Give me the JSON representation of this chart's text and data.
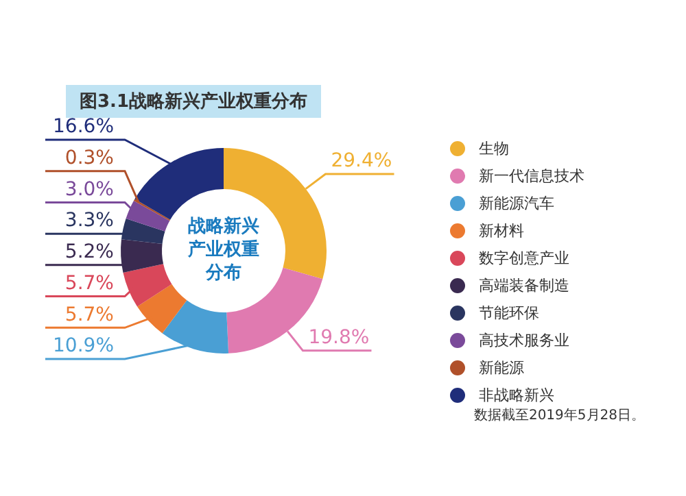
{
  "chart_data": {
    "type": "donut",
    "title": "图3.1战略新兴产业权重分布",
    "categories": [
      "生物",
      "新一代信息技术",
      "新能源汽车",
      "新材料",
      "数字创意产业",
      "高端装备制造",
      "节能环保",
      "高技术服务业",
      "新能源",
      "非战略新兴"
    ],
    "values": [
      29.4,
      19.8,
      10.9,
      5.7,
      5.7,
      5.2,
      3.3,
      3.0,
      0.3,
      16.6
    ],
    "colors": [
      "#efb032",
      "#e07ab0",
      "#4a9fd4",
      "#ec7a30",
      "#d9475a",
      "#3a2a50",
      "#2a3560",
      "#7a4a9a",
      "#b0502a",
      "#1f2d7a"
    ],
    "value_labels": [
      "29.4%",
      "19.8%",
      "10.9%",
      "5.7%",
      "5.7%",
      "5.2%",
      "3.3%",
      "3.0%",
      "0.3%",
      "16.6%"
    ],
    "legend": "right",
    "annotations": [
      "战略新兴产业权重分布",
      "数据截至2019年5月28日。"
    ]
  }
}
